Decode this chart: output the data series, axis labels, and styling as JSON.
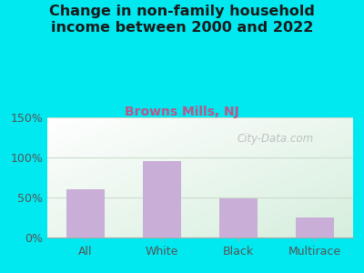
{
  "title": "Change in non-family household\nincome between 2000 and 2022",
  "subtitle": "Browns Mills, NJ",
  "categories": [
    "All",
    "White",
    "Black",
    "Multirace"
  ],
  "values": [
    60,
    95,
    49,
    25
  ],
  "bar_color": "#c9aed8",
  "ylim": [
    0,
    150
  ],
  "yticks": [
    0,
    50,
    100,
    150
  ],
  "ytick_labels": [
    "0%",
    "50%",
    "100%",
    "150%"
  ],
  "title_fontsize": 11.5,
  "subtitle_fontsize": 10,
  "tick_fontsize": 9,
  "bg_outer": "#00e8f0",
  "bg_plot_topleft": "#d6eedd",
  "bg_plot_white": "#f8fff8",
  "subtitle_color": "#bb5588",
  "watermark": "City-Data.com",
  "grid_color": "#ccddcc",
  "spine_color": "#aaaaaa"
}
